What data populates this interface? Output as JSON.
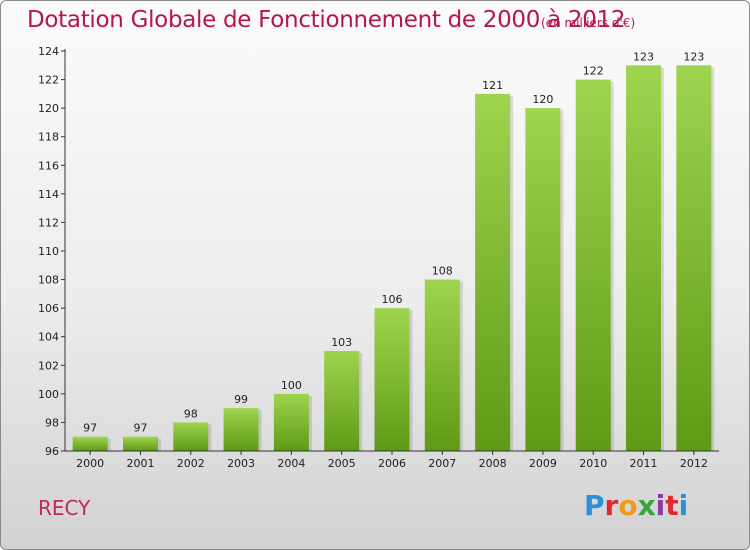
{
  "header": {
    "title": "Dotation Globale de Fonctionnement de 2000 à 2012",
    "subtitle": "(en milliers d'€)"
  },
  "footer": {
    "commune": "RECY",
    "logo_letters": [
      "P",
      "r",
      "o",
      "x",
      "i",
      "t",
      "i"
    ],
    "logo_colors": [
      "#2d8fd6",
      "#e0282e",
      "#f29a1e",
      "#3aa43a",
      "#8a3aa8",
      "#e0282e",
      "#2d8fd6"
    ]
  },
  "colors": {
    "bar_top": "#9fd44e",
    "bar_bottom": "#5e9a16",
    "axis": "#333333"
  },
  "chart_data": {
    "type": "bar",
    "title": "Dotation Globale de Fonctionnement de 2000 à 2012",
    "subtitle": "(en milliers d'€)",
    "xlabel": "",
    "ylabel": "",
    "categories": [
      "2000",
      "2001",
      "2002",
      "2003",
      "2004",
      "2005",
      "2006",
      "2007",
      "2008",
      "2009",
      "2010",
      "2011",
      "2012"
    ],
    "values": [
      97,
      97,
      98,
      99,
      100,
      103,
      106,
      108,
      121,
      120,
      122,
      123,
      123
    ],
    "ylim": [
      96,
      124
    ],
    "yticks": [
      96,
      98,
      100,
      102,
      104,
      106,
      108,
      110,
      112,
      114,
      116,
      118,
      120,
      122,
      124
    ],
    "grid": false,
    "legend": "none"
  }
}
